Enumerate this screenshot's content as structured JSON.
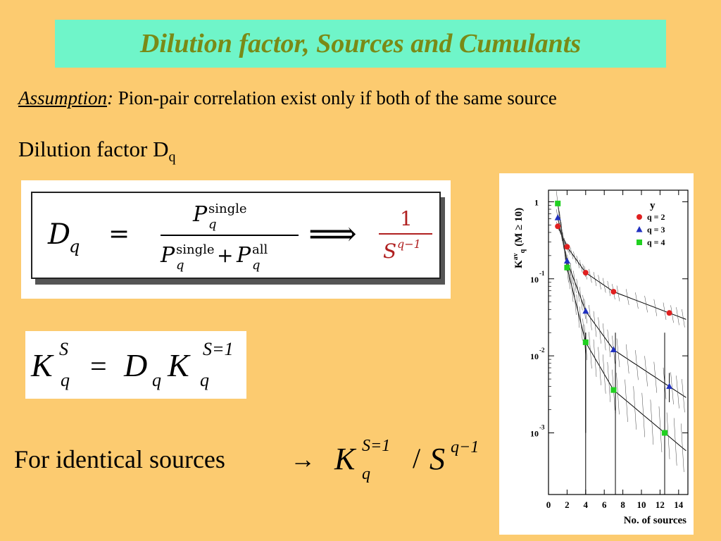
{
  "title": "Dilution factor, Sources and Cumulants",
  "assumption": {
    "lead": "Assumption",
    "colon": ":",
    "text": " Pion-pair correlation exist only if both of the same source"
  },
  "dilution": {
    "label": "Dilution factor D",
    "sub": "q"
  },
  "formula1": {
    "lhs": "D",
    "lhs_sub": "q",
    "eq": "=",
    "num_P": "P",
    "num_sup": "single",
    "num_sub": "q",
    "den_P1": "P",
    "den_sup1": "single",
    "den_sub1": "q",
    "plus": "+",
    "den_P2": "P",
    "den_sup2": "all",
    "den_sub2": "q",
    "arrow": "⟹",
    "rhs_num": "1",
    "rhs_den": "S",
    "rhs_den_sup": "q−1"
  },
  "formula2": {
    "K1": "K",
    "K1_sup": "S",
    "K1_sub": "q",
    "eq": "=",
    "D": "D",
    "D_sub": "q",
    "K2": "K",
    "K2_sup": "S=1",
    "K2_sub": "q"
  },
  "identical": {
    "text": "For identical sources",
    "arrow": "→",
    "K": "K",
    "K_sup": "S=1",
    "K_sub": "q",
    "slash": "/",
    "S": "S",
    "S_sup": "q−1"
  },
  "chart_data": {
    "type": "scatter",
    "xlabel": "No. of sources",
    "ylabel": "K",
    "ylabel_sup": "av",
    "ylabel_sub": "q",
    "ylabel_rest": "(M ≥ 10)",
    "x_ticks": [
      "0",
      "2",
      "4",
      "6",
      "8",
      "10",
      "12",
      "14"
    ],
    "y_ticks": [
      {
        "base": "1",
        "exp": ""
      },
      {
        "base": "10",
        "exp": "-1"
      },
      {
        "base": "10",
        "exp": "-2"
      },
      {
        "base": "10",
        "exp": "-3"
      }
    ],
    "xlim": [
      0,
      15
    ],
    "ylim_log10": [
      -3.8,
      0.15
    ],
    "log_y": true,
    "legend_title": "y",
    "legend_position": "top-right",
    "series": [
      {
        "name": "q = 2",
        "color": "#e02020",
        "marker": "circle",
        "x": [
          1,
          2,
          4,
          7,
          13
        ],
        "y": [
          0.48,
          0.26,
          0.12,
          0.068,
          0.036
        ]
      },
      {
        "name": "q = 3",
        "color": "#2030c0",
        "marker": "triangle",
        "x": [
          1,
          2,
          4,
          7,
          13
        ],
        "y": [
          0.62,
          0.17,
          0.038,
          0.012,
          0.004
        ]
      },
      {
        "name": "q = 4",
        "color": "#20d020",
        "marker": "square",
        "x": [
          1,
          2,
          4,
          7,
          12.5
        ],
        "y": [
          0.95,
          0.14,
          0.015,
          0.0036,
          0.001
        ]
      }
    ]
  }
}
